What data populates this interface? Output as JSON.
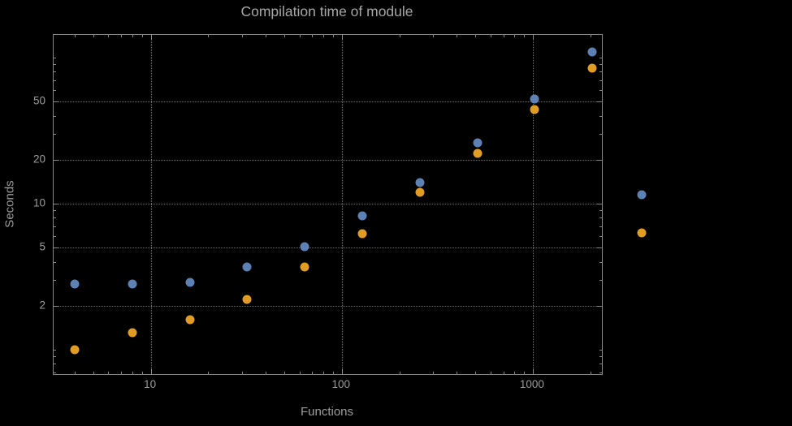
{
  "colors": {
    "background": "#000000",
    "frame": "#878787",
    "grid": "#6f6f6f",
    "text": "#9c9c9c",
    "title_text": "#a6a6a6"
  },
  "chart_data": {
    "type": "scatter",
    "title": "Compilation time of module",
    "xlabel": "Functions",
    "ylabel": "Seconds",
    "x_scale": "log",
    "y_scale": "log",
    "xlim": [
      3.1,
      2300
    ],
    "ylim": [
      0.68,
      143
    ],
    "x_ticks": [
      10,
      100,
      1000
    ],
    "y_ticks": [
      2,
      5,
      10,
      20,
      50
    ],
    "grid": "dotted",
    "legend_position": "right-of-frame",
    "series": [
      {
        "name": "blue-series",
        "color": "#5e81b5",
        "points": [
          [
            4,
            2.8
          ],
          [
            8,
            2.8
          ],
          [
            16,
            2.9
          ],
          [
            32,
            3.7
          ],
          [
            64,
            5.1
          ],
          [
            128,
            8.2
          ],
          [
            256,
            14
          ],
          [
            512,
            26
          ],
          [
            1024,
            52
          ],
          [
            2048,
            110
          ]
        ]
      },
      {
        "name": "orange-series",
        "color": "#e19c24",
        "points": [
          [
            4,
            1.0
          ],
          [
            8,
            1.3
          ],
          [
            16,
            1.6
          ],
          [
            32,
            2.2
          ],
          [
            64,
            3.7
          ],
          [
            128,
            6.2
          ],
          [
            256,
            12
          ],
          [
            512,
            22
          ],
          [
            1024,
            44
          ],
          [
            2048,
            85
          ]
        ]
      }
    ],
    "legend_markers": [
      {
        "color": "#5e81b5"
      },
      {
        "color": "#e19c24"
      }
    ]
  }
}
